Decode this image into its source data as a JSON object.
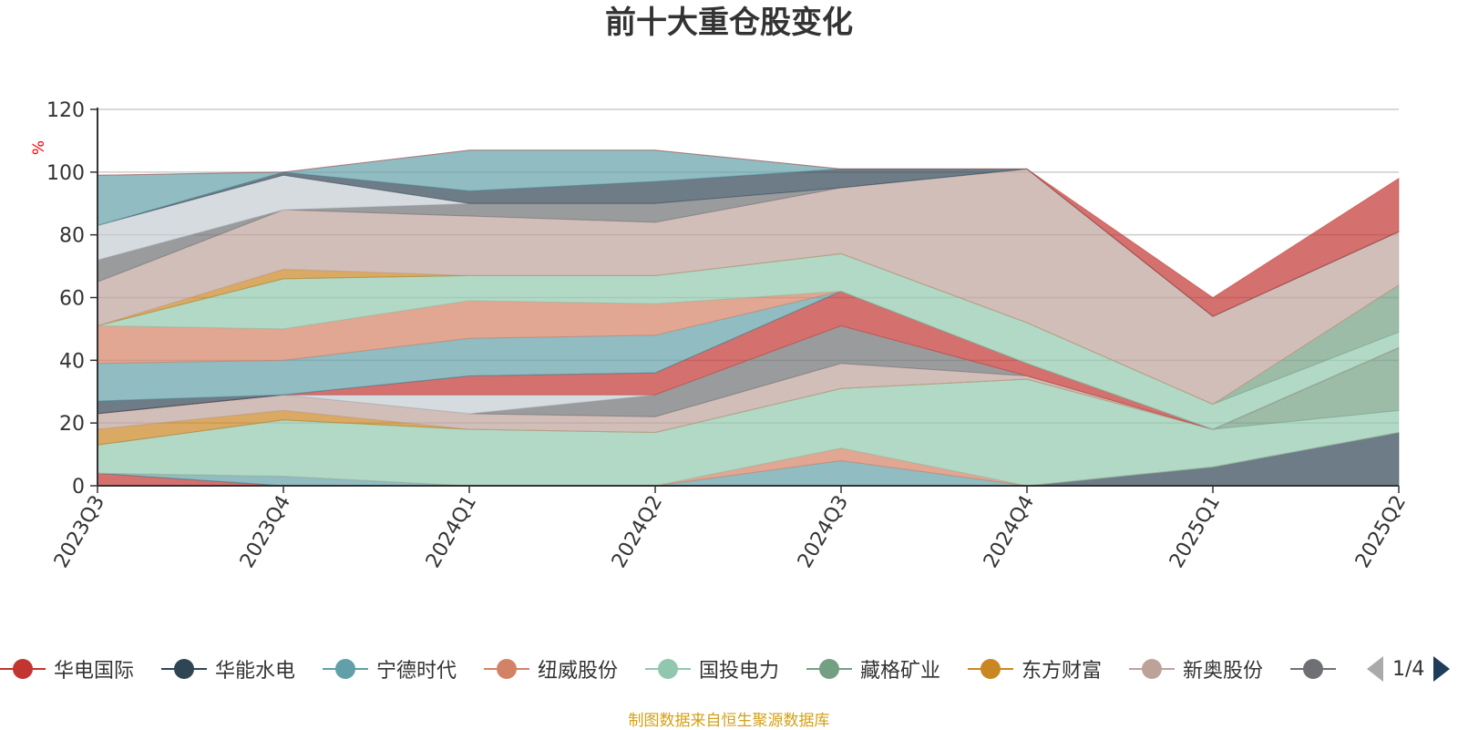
{
  "chart_data": {
    "type": "area",
    "title": "前十大重仓股变化",
    "ylabel": "%",
    "xlabel": "",
    "ylim": [
      0,
      120
    ],
    "yticks": [
      "0",
      "20",
      "40",
      "60",
      "80",
      "100",
      "120"
    ],
    "categories": [
      "2023Q3",
      "2023Q4",
      "2024Q1",
      "2024Q2",
      "2024Q3",
      "2024Q4",
      "2025Q1",
      "2025Q2"
    ],
    "stacked": true,
    "grid": true,
    "legend_position": "bottom",
    "series": [
      {
        "name": "华电国际",
        "color": "#c23531",
        "values": [
          4,
          0,
          0,
          0,
          0,
          0,
          0,
          0
        ]
      },
      {
        "name": "华能水电",
        "color": "#2f4554",
        "values": [
          0,
          0,
          0,
          0,
          0,
          0,
          6,
          17
        ]
      },
      {
        "name": "宁德时代",
        "color": "#61a0a8",
        "values": [
          0,
          3,
          0,
          0,
          8,
          0,
          0,
          0
        ]
      },
      {
        "name": "纽威股份",
        "color": "#d48265",
        "values": [
          0,
          0,
          0,
          0,
          4,
          0,
          0,
          0
        ]
      },
      {
        "name": "国投电力",
        "color": "#91c7ae",
        "values": [
          9,
          18,
          18,
          17,
          19,
          34,
          12,
          7
        ]
      },
      {
        "name": "藏格矿业",
        "color": "#749f83",
        "values": [
          0,
          0,
          0,
          0,
          0,
          0,
          0,
          20
        ]
      },
      {
        "name": "东方财富",
        "color": "#ca8622",
        "values": [
          5,
          3,
          0,
          0,
          0,
          0,
          0,
          0
        ]
      },
      {
        "name": "新奥股份",
        "color": "#bda29a",
        "values": [
          5,
          5,
          5,
          5,
          8,
          1,
          0,
          0
        ]
      },
      {
        "name": "",
        "color": "#6e7074",
        "values": [
          0,
          0,
          0,
          7,
          12,
          0,
          0,
          0
        ]
      },
      {
        "name": "",
        "color": "#c4ccd3",
        "values": [
          0,
          0,
          6,
          0,
          0,
          0,
          0,
          0
        ]
      },
      {
        "name": "",
        "color": "#c23531",
        "values": [
          0,
          0,
          6,
          7,
          11,
          4,
          0,
          0
        ]
      },
      {
        "name": "",
        "color": "#2f4554",
        "values": [
          4,
          0,
          0,
          0,
          0,
          0,
          0,
          0
        ]
      },
      {
        "name": "",
        "color": "#61a0a8",
        "values": [
          12,
          11,
          12,
          12,
          0,
          0,
          0,
          0
        ]
      },
      {
        "name": "",
        "color": "#d48265",
        "values": [
          12,
          10,
          12,
          10,
          0,
          0,
          0,
          0
        ]
      },
      {
        "name": "",
        "color": "#91c7ae",
        "values": [
          0,
          16,
          8,
          9,
          12,
          13,
          8,
          5
        ]
      },
      {
        "name": "",
        "color": "#749f83",
        "values": [
          0,
          0,
          0,
          0,
          0,
          0,
          0,
          15
        ]
      },
      {
        "name": "",
        "color": "#ca8622",
        "values": [
          0,
          3,
          0,
          0,
          0,
          0,
          0,
          0
        ]
      },
      {
        "name": "",
        "color": "#bda29a",
        "values": [
          14,
          19,
          19,
          17,
          21,
          49,
          28,
          17
        ]
      },
      {
        "name": "",
        "color": "#6e7074",
        "values": [
          7,
          0,
          4,
          6,
          0,
          0,
          0,
          0
        ]
      },
      {
        "name": "",
        "color": "#c4ccd3",
        "values": [
          11,
          11,
          0,
          0,
          0,
          0,
          0,
          0
        ]
      },
      {
        "name": "",
        "color": "#2f4554",
        "values": [
          0,
          1,
          4,
          7,
          6,
          0,
          0,
          0
        ]
      },
      {
        "name": "",
        "color": "#61a0a8",
        "values": [
          16,
          0,
          13,
          10,
          0,
          0,
          0,
          0
        ]
      },
      {
        "name": "",
        "color": "#c23531",
        "values": [
          0,
          0,
          0,
          0,
          0,
          0,
          6,
          17
        ]
      }
    ]
  },
  "legend": {
    "items": [
      {
        "label": "华电国际",
        "color": "#c23531"
      },
      {
        "label": "华能水电",
        "color": "#2f4554"
      },
      {
        "label": "宁德时代",
        "color": "#61a0a8"
      },
      {
        "label": "纽威股份",
        "color": "#d48265"
      },
      {
        "label": "国投电力",
        "color": "#91c7ae"
      },
      {
        "label": "藏格矿业",
        "color": "#749f83"
      },
      {
        "label": "东方财富",
        "color": "#ca8622"
      },
      {
        "label": "新奥股份",
        "color": "#bda29a"
      },
      {
        "label": "",
        "color": "#6e7074"
      }
    ],
    "page": "1/4"
  },
  "footer": {
    "source": "制图数据来自恒生聚源数据库"
  }
}
